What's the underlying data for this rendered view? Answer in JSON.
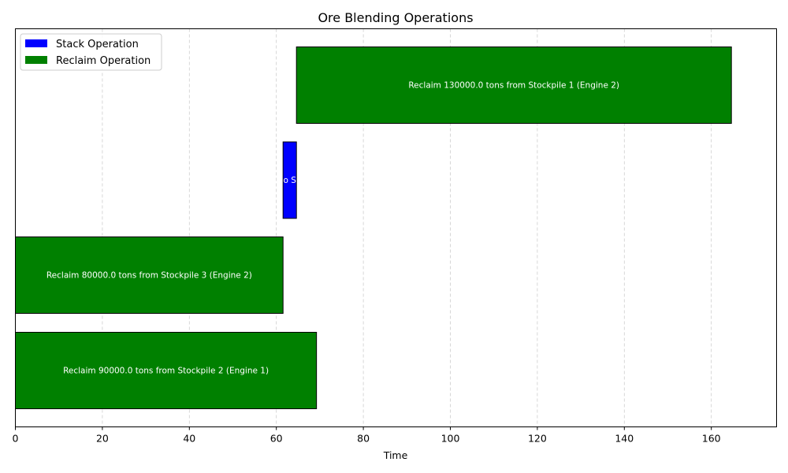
{
  "chart_data": {
    "type": "bar",
    "orientation": "horizontal",
    "title": "Ore Blending Operations",
    "xlabel": "Time",
    "ylabel": "",
    "xlim": [
      0,
      175
    ],
    "xticks": [
      0,
      20,
      40,
      60,
      80,
      100,
      120,
      140,
      160
    ],
    "grid": {
      "x": true,
      "y": false,
      "style": "dashed"
    },
    "legend": {
      "placement": "top-left",
      "entries": [
        {
          "label": "Stack Operation",
          "color": "#0000ff"
        },
        {
          "label": "Reclaim Operation",
          "color": "#008000"
        }
      ]
    },
    "bars": [
      {
        "row": 0,
        "start": 0,
        "end": 69.23,
        "type": "reclaim",
        "label": "Reclaim 90000.0 tons from Stockpile 2 (Engine 1)"
      },
      {
        "row": 1,
        "start": 0,
        "end": 61.54,
        "type": "reclaim",
        "label": "Reclaim 80000.0 tons from Stockpile 3 (Engine 2)"
      },
      {
        "row": 2,
        "start": 61.54,
        "end": 64.62,
        "type": "stack",
        "label": "o S"
      },
      {
        "row": 3,
        "start": 64.62,
        "end": 164.62,
        "type": "reclaim",
        "label": "Reclaim 130000.0 tons from Stockpile 1 (Engine 2)"
      }
    ],
    "colors": {
      "stack": "#0000ff",
      "reclaim": "#008000",
      "edge": "#000000",
      "grid": "#cccccc"
    }
  }
}
